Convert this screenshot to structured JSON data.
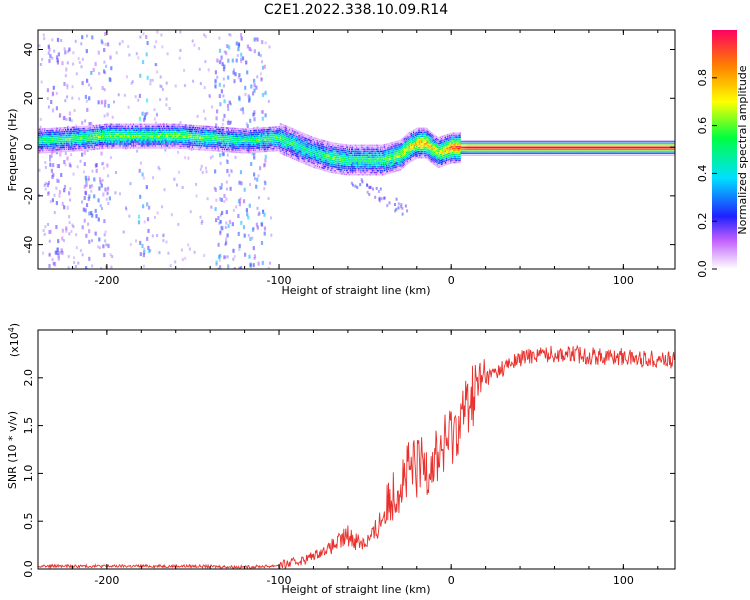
{
  "figure": {
    "title": "C2E1.2022.338.10.09.R14"
  },
  "chart_data": [
    {
      "type": "heatmap",
      "panel": "spectrogram",
      "xlabel": "Height of straight line (km)",
      "ylabel": "Frequency (Hz)",
      "xlim": [
        -240,
        130
      ],
      "ylim": [
        -50,
        48
      ],
      "xticks": [
        -200,
        -100,
        0,
        100
      ],
      "xtick_labels": [
        "-200",
        "-100",
        "0",
        "100"
      ],
      "yticks": [
        -40,
        -20,
        0,
        20,
        40
      ],
      "ytick_labels": [
        "-40",
        "-20",
        "0",
        "20",
        "40"
      ],
      "grid": false,
      "colorbar": {
        "label": "Normalized spectral amplitude",
        "range": [
          0,
          1
        ],
        "ticks": [
          0,
          0.2,
          0.4,
          0.6,
          0.8
        ],
        "tick_labels": [
          "0.0",
          "0.2",
          "0.4",
          "0.6",
          "0.8"
        ],
        "colormap": "rainbow"
      },
      "ridge": {
        "description_points": [
          {
            "x": -240,
            "y": 3,
            "amp": 0.45
          },
          {
            "x": -215,
            "y": 4,
            "amp": 0.5
          },
          {
            "x": -200,
            "y": 5,
            "amp": 0.55
          },
          {
            "x": -180,
            "y": 5,
            "amp": 0.5
          },
          {
            "x": -160,
            "y": 5,
            "amp": 0.55
          },
          {
            "x": -140,
            "y": 4,
            "amp": 0.5
          },
          {
            "x": -120,
            "y": 3,
            "amp": 0.45
          },
          {
            "x": -100,
            "y": 4,
            "amp": 0.5
          },
          {
            "x": -90,
            "y": 1,
            "amp": 0.45
          },
          {
            "x": -80,
            "y": -2,
            "amp": 0.4
          },
          {
            "x": -70,
            "y": -4,
            "amp": 0.5
          },
          {
            "x": -60,
            "y": -5,
            "amp": 0.45
          },
          {
            "x": -50,
            "y": -5,
            "amp": 0.45
          },
          {
            "x": -40,
            "y": -5,
            "amp": 0.5
          },
          {
            "x": -30,
            "y": -3,
            "amp": 0.6
          },
          {
            "x": -25,
            "y": 0,
            "amp": 0.65
          },
          {
            "x": -20,
            "y": 2,
            "amp": 0.7
          },
          {
            "x": -15,
            "y": 2,
            "amp": 0.75
          },
          {
            "x": -8,
            "y": -2,
            "amp": 0.6
          },
          {
            "x": 0,
            "y": 0,
            "amp": 0.8
          },
          {
            "x": 10,
            "y": 0,
            "amp": 0.95
          },
          {
            "x": 50,
            "y": 0,
            "amp": 0.95
          },
          {
            "x": 100,
            "y": 0,
            "amp": 0.95
          },
          {
            "x": 130,
            "y": 0,
            "amp": 0.95
          }
        ]
      },
      "noise_bands_x": [
        {
          "from": -235,
          "to": -222,
          "amp": 0.2
        },
        {
          "from": -215,
          "to": -198,
          "amp": 0.25
        },
        {
          "from": -182,
          "to": -176,
          "amp": 0.35
        },
        {
          "from": -138,
          "to": -108,
          "amp": 0.3
        }
      ]
    },
    {
      "type": "line",
      "panel": "snr",
      "xlabel": "Height of straight line (km)",
      "ylabel": "SNR (10 * v/v)",
      "y_multiplier_label": "(x10",
      "y_multiplier_exponent": "4",
      "y_multiplier_close": ")",
      "xlim": [
        -240,
        130
      ],
      "ylim": [
        0,
        2.5
      ],
      "xticks": [
        -200,
        -100,
        0,
        100
      ],
      "xtick_labels": [
        "-200",
        "-100",
        "0",
        "100"
      ],
      "yticks": [
        0,
        0.5,
        1.0,
        1.5,
        2.0
      ],
      "ytick_labels": [
        "0.0",
        "0.5",
        "1.0",
        "1.5",
        "2.0"
      ],
      "grid": false,
      "line_color": "#e8302c",
      "series": [
        {
          "x": [
            -240,
            -200,
            -150,
            -120,
            -105,
            -95,
            -85,
            -75,
            -65,
            -60,
            -55,
            -50,
            -45,
            -40,
            -35,
            -30,
            -25,
            -20,
            -15,
            -10,
            -5,
            0,
            5,
            10,
            15,
            20,
            25,
            30,
            35,
            40,
            50,
            60,
            70,
            80,
            90,
            100,
            110,
            120,
            130
          ],
          "values": [
            0.03,
            0.03,
            0.03,
            0.02,
            0.03,
            0.05,
            0.1,
            0.18,
            0.28,
            0.35,
            0.3,
            0.28,
            0.35,
            0.55,
            0.75,
            0.9,
            1.0,
            1.05,
            1.1,
            1.15,
            1.25,
            1.4,
            1.55,
            1.75,
            1.9,
            2.0,
            2.05,
            2.1,
            2.15,
            2.2,
            2.25,
            2.25,
            2.25,
            2.23,
            2.22,
            2.22,
            2.2,
            2.2,
            2.18
          ]
        }
      ]
    }
  ]
}
